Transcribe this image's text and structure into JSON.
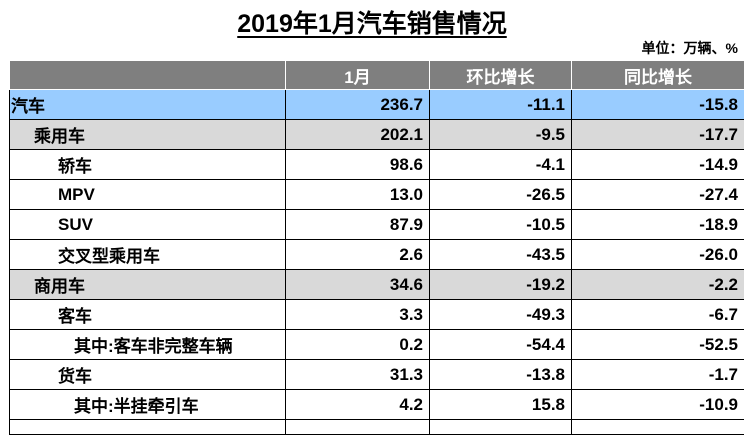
{
  "title": "2019年1月汽车销售情况",
  "unit": "单位：万辆、%",
  "table": {
    "headers": [
      "",
      "1月",
      "环比增长",
      "同比增长"
    ],
    "rows": [
      {
        "name": "汽车",
        "month": "236.7",
        "mom": "-11.1",
        "yoy": "-15.8"
      },
      {
        "name": "乘用车",
        "month": "202.1",
        "mom": "-9.5",
        "yoy": "-17.7"
      },
      {
        "name": "轿车",
        "month": "98.6",
        "mom": "-4.1",
        "yoy": "-14.9"
      },
      {
        "name": "MPV",
        "month": "13.0",
        "mom": "-26.5",
        "yoy": "-27.4"
      },
      {
        "name": "SUV",
        "month": "87.9",
        "mom": "-10.5",
        "yoy": "-18.9"
      },
      {
        "name": "交叉型乘用车",
        "month": "2.6",
        "mom": "-43.5",
        "yoy": "-26.0"
      },
      {
        "name": "商用车",
        "month": "34.6",
        "mom": "-19.2",
        "yoy": "-2.2"
      },
      {
        "name": "客车",
        "month": "3.3",
        "mom": "-49.3",
        "yoy": "-6.7"
      },
      {
        "name": "其中:客车非完整车辆",
        "month": "0.2",
        "mom": "-54.4",
        "yoy": "-52.5"
      },
      {
        "name": "货车",
        "month": "31.3",
        "mom": "-13.8",
        "yoy": "-1.7"
      },
      {
        "name": "其中:半挂牵引车",
        "month": "4.2",
        "mom": "15.8",
        "yoy": "-10.9"
      }
    ]
  }
}
